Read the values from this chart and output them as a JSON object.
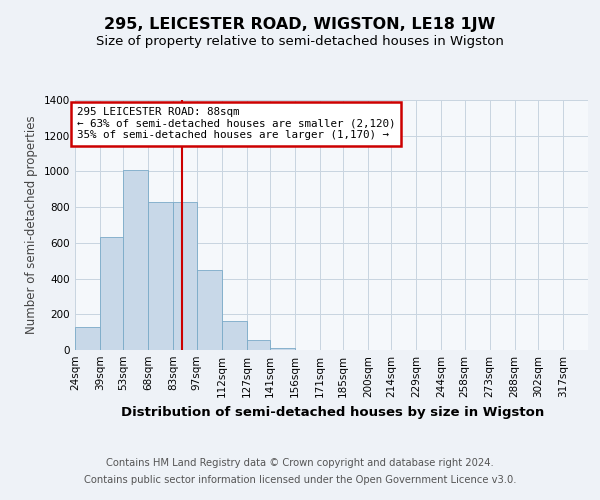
{
  "title": "295, LEICESTER ROAD, WIGSTON, LE18 1JW",
  "subtitle": "Size of property relative to semi-detached houses in Wigston",
  "xlabel": "Distribution of semi-detached houses by size in Wigston",
  "ylabel": "Number of semi-detached properties",
  "footer_line1": "Contains HM Land Registry data © Crown copyright and database right 2024.",
  "footer_line2": "Contains public sector information licensed under the Open Government Licence v3.0.",
  "annotation_line1": "295 LEICESTER ROAD: 88sqm",
  "annotation_line2": "← 63% of semi-detached houses are smaller (2,120)",
  "annotation_line3": "35% of semi-detached houses are larger (1,170) →",
  "property_size": 88,
  "bar_color": "#c8d8e8",
  "bar_edge_color": "#7aaac8",
  "redline_color": "#cc0000",
  "annotation_box_edge": "#cc0000",
  "background_color": "#eef2f7",
  "plot_bg_color": "#f5f8fb",
  "grid_color": "#c8d4e0",
  "categories": [
    "24sqm",
    "39sqm",
    "53sqm",
    "68sqm",
    "83sqm",
    "97sqm",
    "112sqm",
    "127sqm",
    "141sqm",
    "156sqm",
    "171sqm",
    "185sqm",
    "200sqm",
    "214sqm",
    "229sqm",
    "244sqm",
    "258sqm",
    "273sqm",
    "288sqm",
    "302sqm",
    "317sqm"
  ],
  "bin_edges": [
    24,
    39,
    53,
    68,
    83,
    97,
    112,
    127,
    141,
    156,
    171,
    185,
    200,
    214,
    229,
    244,
    258,
    273,
    288,
    302,
    317,
    332
  ],
  "values": [
    130,
    635,
    1010,
    830,
    830,
    450,
    160,
    55,
    10,
    0,
    0,
    0,
    0,
    0,
    0,
    0,
    0,
    0,
    0,
    0,
    0
  ],
  "ylim": [
    0,
    1400
  ],
  "yticks": [
    0,
    200,
    400,
    600,
    800,
    1000,
    1200,
    1400
  ],
  "title_fontsize": 11.5,
  "subtitle_fontsize": 9.5,
  "xlabel_fontsize": 9.5,
  "ylabel_fontsize": 8.5,
  "tick_fontsize": 7.5,
  "annotation_fontsize": 7.8,
  "footer_fontsize": 7.2
}
